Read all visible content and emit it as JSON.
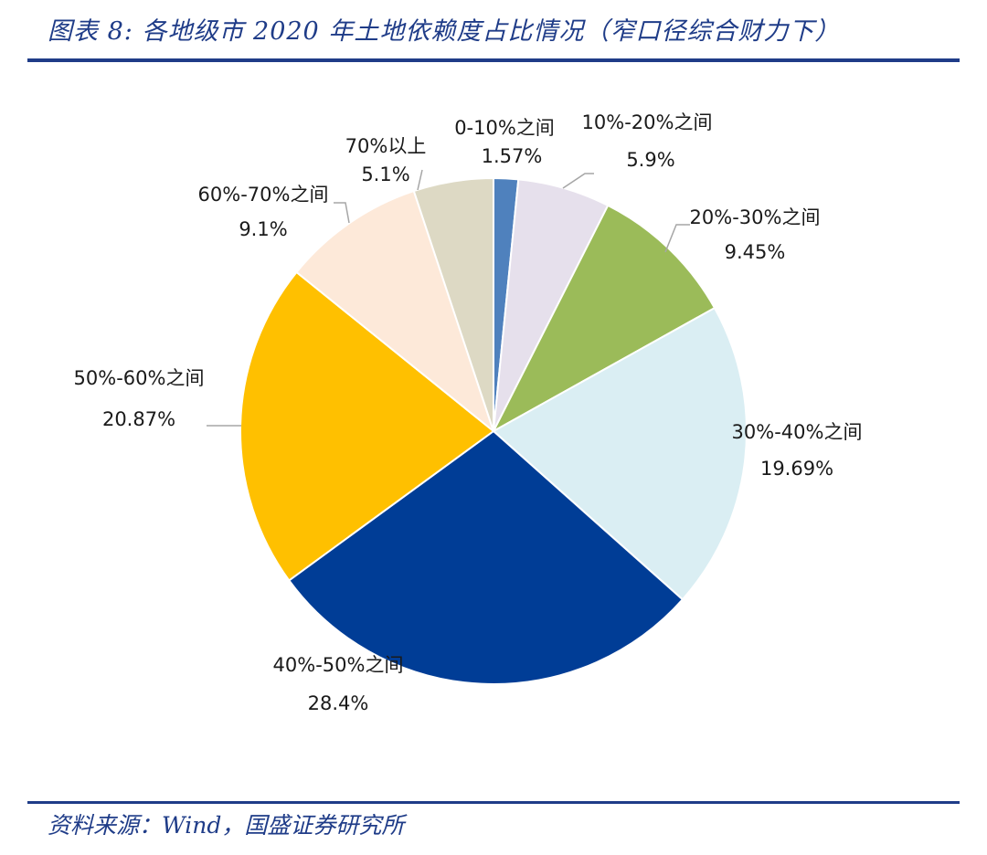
{
  "header": {
    "title": "图表 8:  各地级市 2020 年土地依赖度占比情况（窄口径综合财力下）"
  },
  "footer": {
    "source": "资料来源：Wind，国盛证券研究所"
  },
  "chart_data": {
    "type": "pie",
    "title": "图表 8:  各地级市 2020 年土地依赖度占比情况（窄口径综合财力下）",
    "unit": "%",
    "slices": [
      {
        "label": "0-10%之间",
        "value": 1.57,
        "value_label": "1.57%",
        "color": "#4f81bd"
      },
      {
        "label": "10%-20%之间",
        "value": 5.9,
        "value_label": "5.9%",
        "color": "#e6e0ec"
      },
      {
        "label": "20%-30%之间",
        "value": 9.45,
        "value_label": "9.45%",
        "color": "#9bbb59"
      },
      {
        "label": "30%-40%之间",
        "value": 19.69,
        "value_label": "19.69%",
        "color": "#daeef3"
      },
      {
        "label": "40%-50%之间",
        "value": 28.4,
        "value_label": "28.4%",
        "color": "#003d96"
      },
      {
        "label": "50%-60%之间",
        "value": 20.87,
        "value_label": "20.87%",
        "color": "#ffc000"
      },
      {
        "label": "60%-70%之间",
        "value": 9.1,
        "value_label": "9.1%",
        "color": "#fde9d9"
      },
      {
        "label": "70%以上",
        "value": 5.1,
        "value_label": "5.1%",
        "color": "#ddd9c4"
      }
    ]
  }
}
